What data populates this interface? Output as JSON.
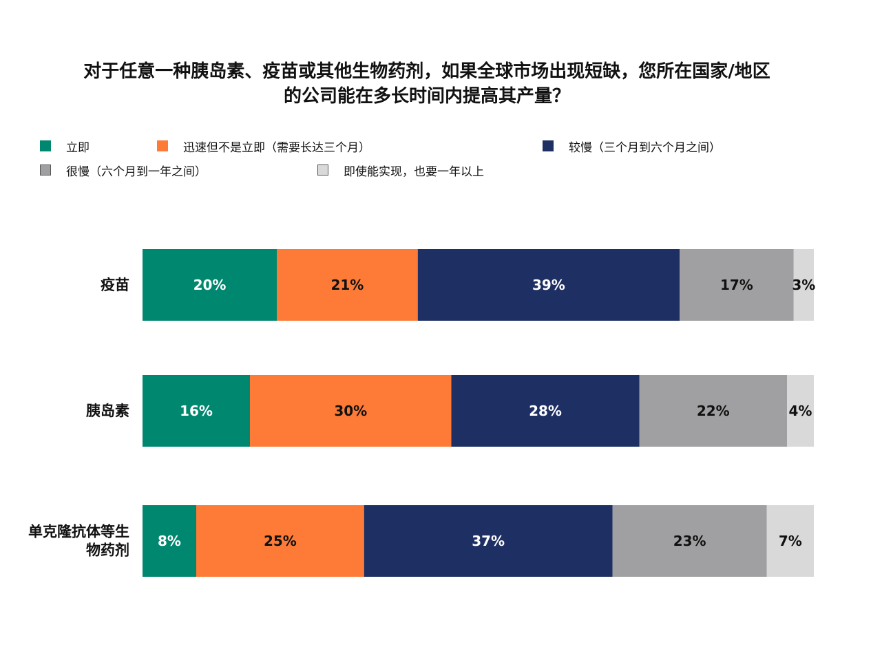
{
  "title": {
    "line1": "对于任意一种胰岛素、疫苗或其他生物药剂，如果全球市场出现短缺，您所在国家/地区",
    "line2": "的公司能在多长时间内提高其产量？"
  },
  "colors": {
    "immediate": "#00876F",
    "fast": "#FD7B37",
    "slower": "#1E2F63",
    "very_slow": "#A0A0A2",
    "over_year": "#D9D9D9",
    "label_light": "#FFFFFF",
    "label_dark": "#111111"
  },
  "chart_data": {
    "type": "bar",
    "orientation": "horizontal",
    "stacked": true,
    "percent_stacked": true,
    "title": "对于任意一种胰岛素、疫苗或其他生物药剂，如果全球市场出现短缺，您所在国家/地区的公司能在多长时间内提高其产量？",
    "legend_position": "top",
    "grid": false,
    "xlim": [
      0,
      100
    ],
    "categories": [
      "疫苗",
      "胰岛素",
      "单克隆抗体等生物药剂"
    ],
    "category_label_lines": [
      [
        "疫苗"
      ],
      [
        "胰岛素"
      ],
      [
        "单克隆抗体等生",
        "物药剂"
      ]
    ],
    "series": [
      {
        "name": "立即",
        "key": "immediate",
        "values": [
          20,
          16,
          8
        ],
        "labels": [
          "20%",
          "16%",
          "8%"
        ]
      },
      {
        "name": "迅速但不是立即（需要长达三个月）",
        "key": "fast",
        "values": [
          21,
          30,
          25
        ],
        "labels": [
          "21%",
          "30%",
          "25%"
        ]
      },
      {
        "name": "较慢（三个月到六个月之间）",
        "key": "slower",
        "values": [
          39,
          28,
          37
        ],
        "labels": [
          "39%",
          "28%",
          "37%"
        ]
      },
      {
        "name": "很慢（六个月到一年之间）",
        "key": "very_slow",
        "values": [
          17,
          22,
          23
        ],
        "labels": [
          "17%",
          "22%",
          "23%"
        ]
      },
      {
        "name": "即使能实现，也要一年以上",
        "key": "over_year",
        "values": [
          3,
          4,
          7
        ],
        "labels": [
          "3%",
          "4%",
          "7%"
        ]
      }
    ]
  }
}
